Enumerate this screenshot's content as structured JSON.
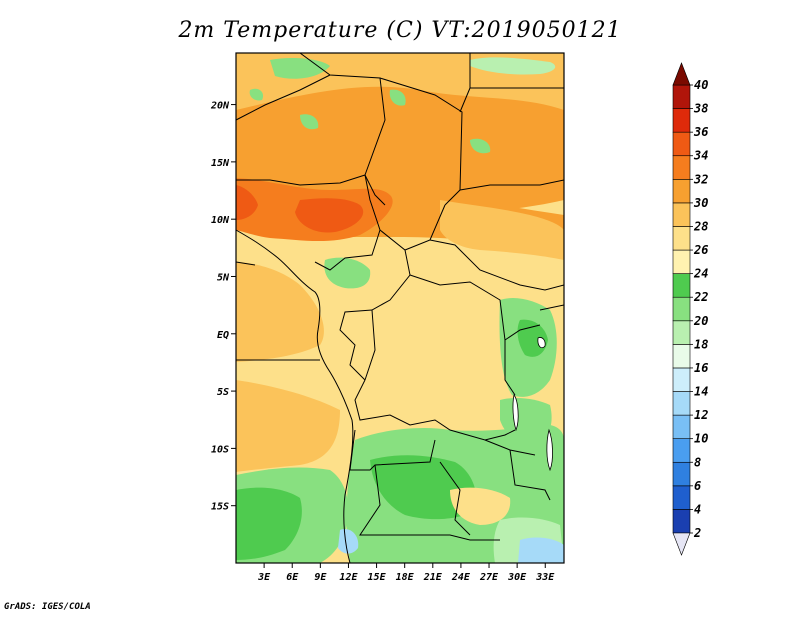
{
  "title": "2m Temperature (C) VT:2019050121",
  "credit": "GrADS: IGES/COLA",
  "map": {
    "lon_ticks": [
      "3E",
      "6E",
      "9E",
      "12E",
      "15E",
      "18E",
      "21E",
      "24E",
      "27E",
      "30E",
      "33E"
    ],
    "lat_ticks": [
      "20N",
      "15N",
      "10N",
      "5N",
      "EQ",
      "5S",
      "10S",
      "15S"
    ]
  },
  "colorbar": {
    "levels": [
      "2",
      "4",
      "6",
      "8",
      "10",
      "12",
      "14",
      "16",
      "18",
      "20",
      "22",
      "24",
      "26",
      "28",
      "30",
      "32",
      "34",
      "36",
      "38",
      "40"
    ],
    "colors": [
      "#0b0b6e",
      "#1a3fb0",
      "#1f5fce",
      "#2f80e0",
      "#4a9ef0",
      "#79bff5",
      "#a6daf8",
      "#cdeefb",
      "#e9fbe9",
      "#b9f0b0",
      "#88e080",
      "#4fcb4f",
      "#fff2b0",
      "#fde08a",
      "#fbc35a",
      "#f7a030",
      "#f57d1e",
      "#ef5a14",
      "#de2a0a",
      "#b0150a",
      "#7a0a00"
    ]
  }
}
